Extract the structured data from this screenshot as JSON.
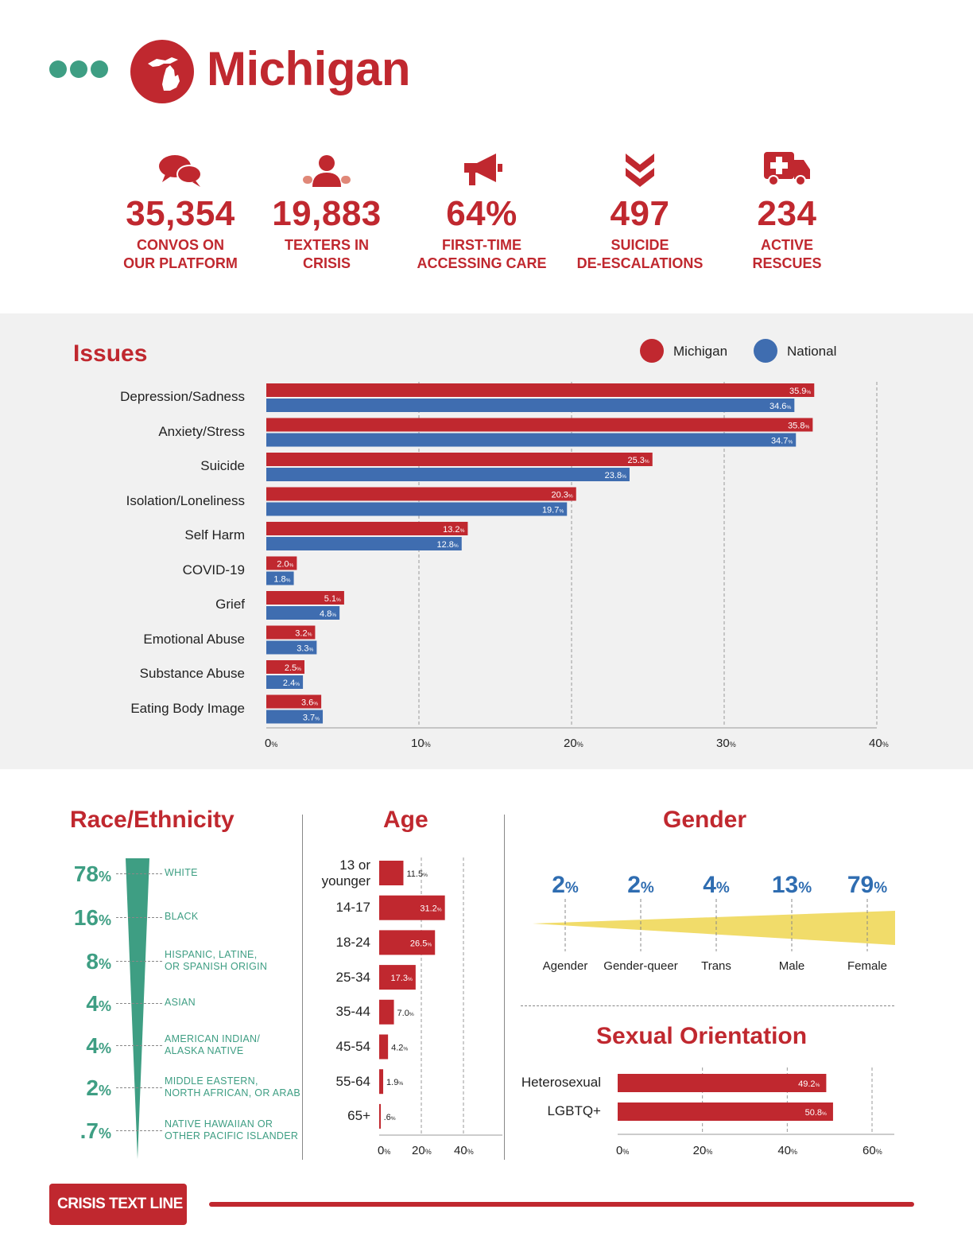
{
  "header": {
    "title": "Michigan"
  },
  "stats": [
    {
      "value": "35,354",
      "label_line1": "CONVOS ON",
      "label_line2": "OUR PLATFORM",
      "icon": "chat-bubbles-icon"
    },
    {
      "value": "19,883",
      "label_line1": "TEXTERS IN",
      "label_line2": "CRISIS",
      "icon": "person-icon"
    },
    {
      "value": "64%",
      "label_line1": "FIRST-TIME",
      "label_line2": "ACCESSING CARE",
      "icon": "megaphone-icon"
    },
    {
      "value": "497",
      "label_line1": "SUICIDE",
      "label_line2": "DE-ESCALATIONS",
      "icon": "double-chevron-down-icon"
    },
    {
      "value": "234",
      "label_line1": "ACTIVE",
      "label_line2": "RESCUES",
      "icon": "ambulance-icon"
    }
  ],
  "colors": {
    "red": "#c0282f",
    "blue": "#3f6db0",
    "teal": "#3e9e83",
    "yellow": "#f1dc6a"
  },
  "chart_data": [
    {
      "type": "bar",
      "orientation": "horizontal",
      "title": "Issues",
      "categories": [
        "Depression/Sadness",
        "Anxiety/Stress",
        "Suicide",
        "Isolation/Loneliness",
        "Self Harm",
        "COVID-19",
        "Grief",
        "Emotional Abuse",
        "Substance Abuse",
        "Eating Body Image"
      ],
      "series": [
        {
          "name": "Michigan",
          "values": [
            35.9,
            35.8,
            25.3,
            20.3,
            13.2,
            2.0,
            5.1,
            3.2,
            2.5,
            3.6
          ],
          "color": "#c0282f"
        },
        {
          "name": "National",
          "values": [
            34.6,
            34.7,
            23.8,
            19.7,
            12.8,
            1.8,
            4.8,
            3.3,
            2.4,
            3.7
          ],
          "color": "#3f6db0"
        }
      ],
      "xlim": [
        0,
        40
      ],
      "xticks": [
        "0",
        "10",
        "20",
        "30",
        "40"
      ],
      "unit": "%",
      "grid": true,
      "legend": "top-right"
    },
    {
      "type": "bar",
      "title": "Race/Ethnicity",
      "categories": [
        "WHITE",
        "BLACK",
        "HISPANIC, LATINE,|OR SPANISH ORIGIN",
        "ASIAN",
        "AMERICAN INDIAN/|ALASKA NATIVE",
        "MIDDLE EASTERN,|NORTH AFRICAN, OR ARAB",
        "NATIVE HAWAIIAN OR|OTHER PACIFIC ISLANDER"
      ],
      "values": [
        78,
        16,
        8,
        4,
        4,
        2,
        0.7
      ],
      "value_labels": [
        "78",
        "16",
        "8",
        "4",
        "4",
        "2",
        ".7"
      ],
      "unit": "%"
    },
    {
      "type": "bar",
      "orientation": "horizontal",
      "title": "Age",
      "categories": [
        "13 or|younger",
        "14-17",
        "18-24",
        "25-34",
        "35-44",
        "45-54",
        "55-64",
        "65+"
      ],
      "values": [
        11.5,
        31.2,
        26.5,
        17.3,
        7.0,
        4.2,
        1.9,
        0.6
      ],
      "value_labels": [
        "11.5",
        "31.2",
        "26.5",
        "17.3",
        "7.0",
        "4.2",
        "1.9",
        ".6"
      ],
      "xlim": [
        0,
        40
      ],
      "xticks": [
        "0",
        "20",
        "40"
      ],
      "unit": "%"
    },
    {
      "type": "area",
      "title": "Gender",
      "categories": [
        "Agender",
        "Gender-queer",
        "Trans",
        "Male",
        "Female"
      ],
      "values": [
        2,
        2,
        4,
        13,
        79
      ],
      "unit": "%"
    },
    {
      "type": "bar",
      "orientation": "horizontal",
      "title": "Sexual Orientation",
      "categories": [
        "Heterosexual",
        "LGBTQ+"
      ],
      "values": [
        49.2,
        50.8
      ],
      "xlim": [
        0,
        60
      ],
      "xticks": [
        "0",
        "20",
        "40",
        "60"
      ],
      "unit": "%"
    }
  ],
  "footer": {
    "logo_text": "CRISIS TEXT LINE |"
  }
}
